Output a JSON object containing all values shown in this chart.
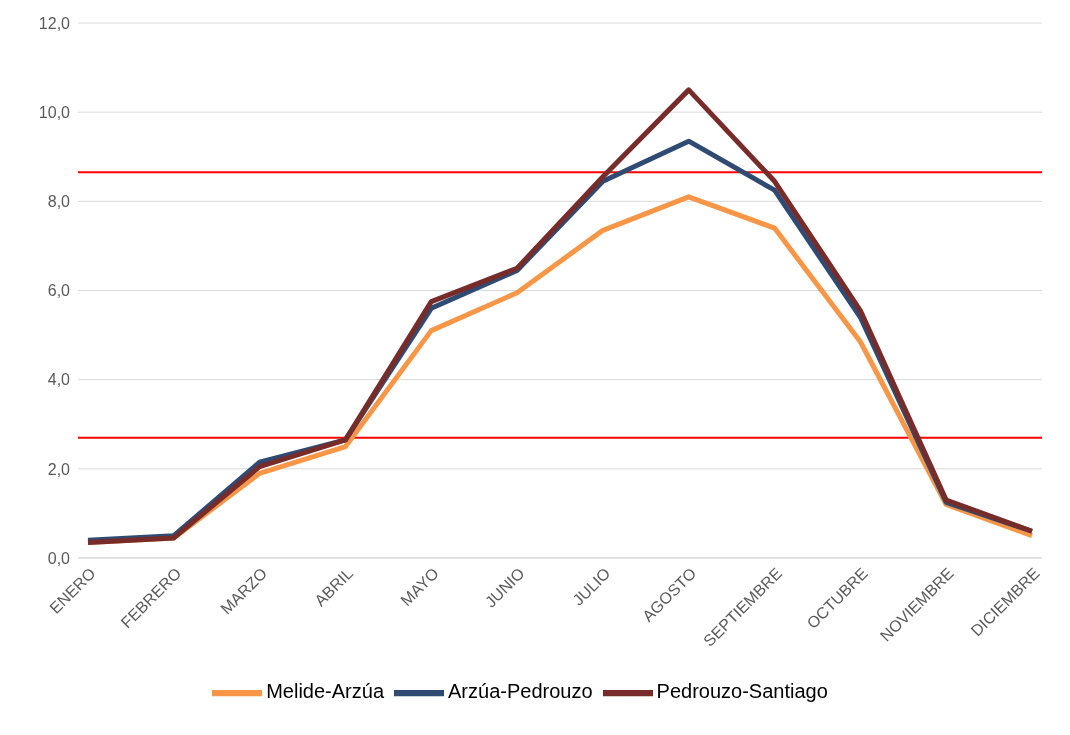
{
  "chart_data": {
    "type": "line",
    "categories": [
      "ENERO",
      "FEBRERO",
      "MARZO",
      "ABRIL",
      "MAYO",
      "JUNIO",
      "JULIO",
      "AGOSTO",
      "SEPTIEMBRE",
      "OCTUBRE",
      "NOVIEMBRE",
      "DICIEMBRE"
    ],
    "series": [
      {
        "name": "Melide-Arzúa",
        "color": "#f79646",
        "values": [
          0.35,
          0.45,
          1.9,
          2.5,
          5.1,
          5.95,
          7.35,
          8.1,
          7.4,
          4.85,
          1.2,
          0.5
        ]
      },
      {
        "name": "Arzúa-Pedrouzo",
        "color": "#2f4b73",
        "values": [
          0.4,
          0.5,
          2.15,
          2.65,
          5.6,
          6.45,
          8.45,
          9.35,
          8.25,
          5.4,
          1.25,
          0.6
        ]
      },
      {
        "name": "Pedrouzo-Santiago",
        "color": "#772c2a",
        "values": [
          0.35,
          0.45,
          2.05,
          2.65,
          5.75,
          6.5,
          8.55,
          10.5,
          8.45,
          5.55,
          1.3,
          0.6
        ]
      }
    ],
    "ylim": [
      0,
      12
    ],
    "yticks": [
      {
        "value": 0,
        "label": "0,0"
      },
      {
        "value": 2,
        "label": "2,0"
      },
      {
        "value": 4,
        "label": "4,0"
      },
      {
        "value": 6,
        "label": "6,0"
      },
      {
        "value": 8,
        "label": "8,0"
      },
      {
        "value": 10,
        "label": "10,0"
      },
      {
        "value": 12,
        "label": "12,0"
      }
    ],
    "ref_lines": [
      {
        "axis": "y",
        "value": 8.65,
        "color": "#ff0000"
      },
      {
        "axis": "y",
        "value": 2.7,
        "color": "#ff0000"
      }
    ],
    "grid": "y",
    "legend": "bottom",
    "marker": "none",
    "line_style": "solid"
  }
}
